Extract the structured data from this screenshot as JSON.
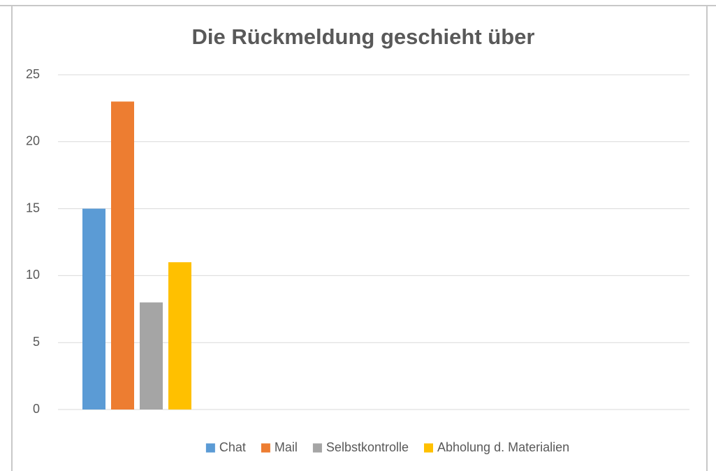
{
  "chart_data": {
    "type": "bar",
    "title": "Die Rückmeldung geschieht über",
    "categories": [
      null,
      null,
      null,
      null
    ],
    "series": [
      {
        "name": "Chat",
        "color": "#5b9bd5",
        "values": [
          15,
          null,
          null,
          null
        ]
      },
      {
        "name": "Mail",
        "color": "#ed7d31",
        "values": [
          23,
          null,
          null,
          null
        ]
      },
      {
        "name": "Selbstkontrolle",
        "color": "#a5a5a5",
        "values": [
          8,
          null,
          null,
          null
        ]
      },
      {
        "name": "Abholung d. Materialien",
        "color": "#ffc000",
        "values": [
          11,
          null,
          null,
          null
        ]
      }
    ],
    "ylim": [
      0,
      25
    ],
    "yticks": [
      0,
      5,
      10,
      15,
      20,
      25
    ],
    "grid": true,
    "legend": "bottom"
  }
}
